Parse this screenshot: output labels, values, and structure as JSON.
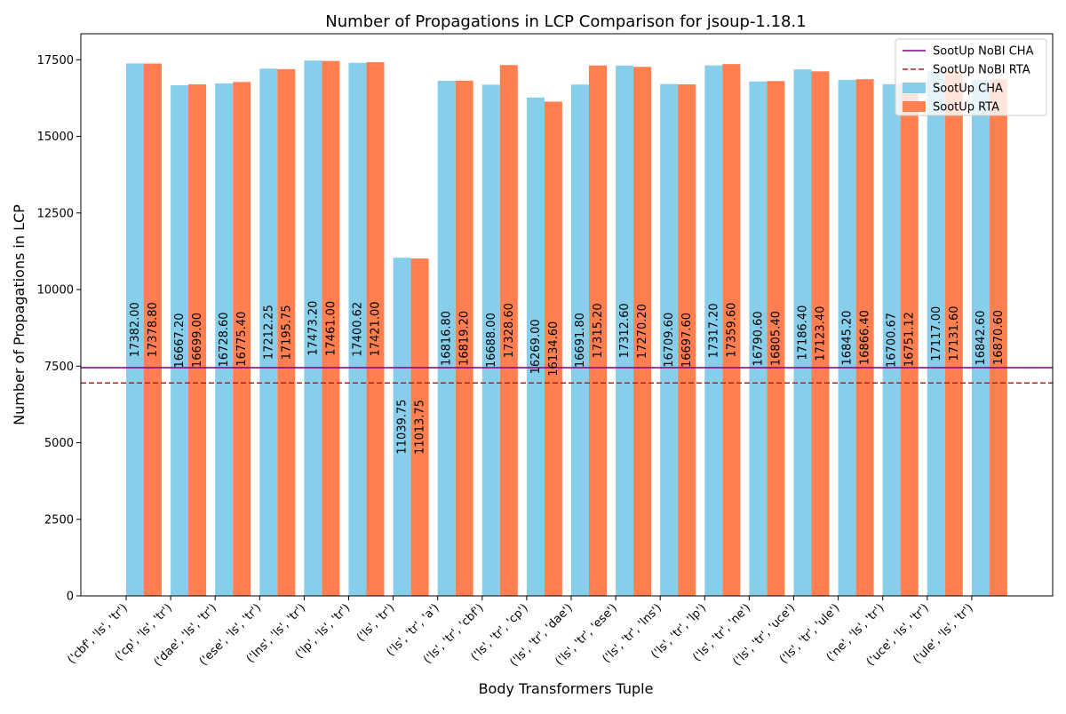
{
  "chart_data": {
    "type": "bar",
    "title": "Number of Propagations in LCP Comparison for jsoup-1.18.1",
    "xlabel": "Body Transformers Tuple",
    "ylabel": "Number of Propagations in LCP",
    "ylim": [
      0,
      18350
    ],
    "yticks": [
      0,
      2500,
      5000,
      7500,
      10000,
      12500,
      15000,
      17500
    ],
    "categories": [
      "('cbf', 'ls', 'tr')",
      "('cp', 'ls', 'tr')",
      "('dae', 'ls', 'tr')",
      "('ese', 'ls', 'tr')",
      "('lns', 'ls', 'tr')",
      "('lp', 'ls', 'tr')",
      "('ls', 'tr')",
      "('ls', 'tr', 'a')",
      "('ls', 'tr', 'cbf')",
      "('ls', 'tr', 'cp')",
      "('ls', 'tr', 'dae')",
      "('ls', 'tr', 'ese')",
      "('ls', 'tr', 'lns')",
      "('ls', 'tr', 'lp')",
      "('ls', 'tr', 'ne')",
      "('ls', 'tr', 'uce')",
      "('ls', 'tr', 'ule')",
      "('ne', 'ls', 'tr')",
      "('uce', 'ls', 'tr')",
      "('ule', 'ls', 'tr')"
    ],
    "series": [
      {
        "name": "SootUp CHA",
        "color": "#87CEEB",
        "values": [
          17382.0,
          16667.2,
          16728.6,
          17212.25,
          17473.2,
          17400.62,
          11039.75,
          16816.8,
          16688.0,
          16269.0,
          16691.8,
          17312.6,
          16709.6,
          17317.2,
          16790.6,
          17186.4,
          16845.2,
          16700.67,
          17117.0,
          16842.6
        ],
        "labels": [
          "17382.00",
          "16667.20",
          "16728.60",
          "17212.25",
          "17473.20",
          "17400.62",
          "11039.75",
          "16816.80",
          "16688.00",
          "16269.00",
          "16691.80",
          "17312.60",
          "16709.60",
          "17317.20",
          "16790.60",
          "17186.40",
          "16845.20",
          "16700.67",
          "17117.00",
          "16842.60"
        ]
      },
      {
        "name": "SootUp RTA",
        "color": "#FF7F50",
        "values": [
          17378.8,
          16699.0,
          16775.4,
          17195.75,
          17461.0,
          17421.0,
          11013.75,
          16819.2,
          17328.6,
          16134.6,
          17315.2,
          17270.2,
          16697.6,
          17359.6,
          16805.4,
          17123.4,
          16866.4,
          16751.12,
          17131.6,
          16870.6
        ],
        "labels": [
          "17378.80",
          "16699.00",
          "16775.40",
          "17195.75",
          "17461.00",
          "17421.00",
          "11013.75",
          "16819.20",
          "17328.60",
          "16134.60",
          "17315.20",
          "17270.20",
          "16697.60",
          "17359.60",
          "16805.40",
          "17123.40",
          "16866.40",
          "16751.12",
          "17131.60",
          "16870.60"
        ]
      }
    ],
    "reference_lines": [
      {
        "name": "SootUp NoBI CHA",
        "value": 7450,
        "color": "#800080",
        "style": "solid"
      },
      {
        "name": "SootUp NoBI RTA",
        "value": 6950,
        "color": "#B22222",
        "style": "dashed"
      }
    ],
    "legend": {
      "position": "top-right",
      "entries": [
        "SootUp NoBI CHA",
        "SootUp NoBI RTA",
        "SootUp CHA",
        "SootUp RTA"
      ]
    },
    "grid": false
  }
}
